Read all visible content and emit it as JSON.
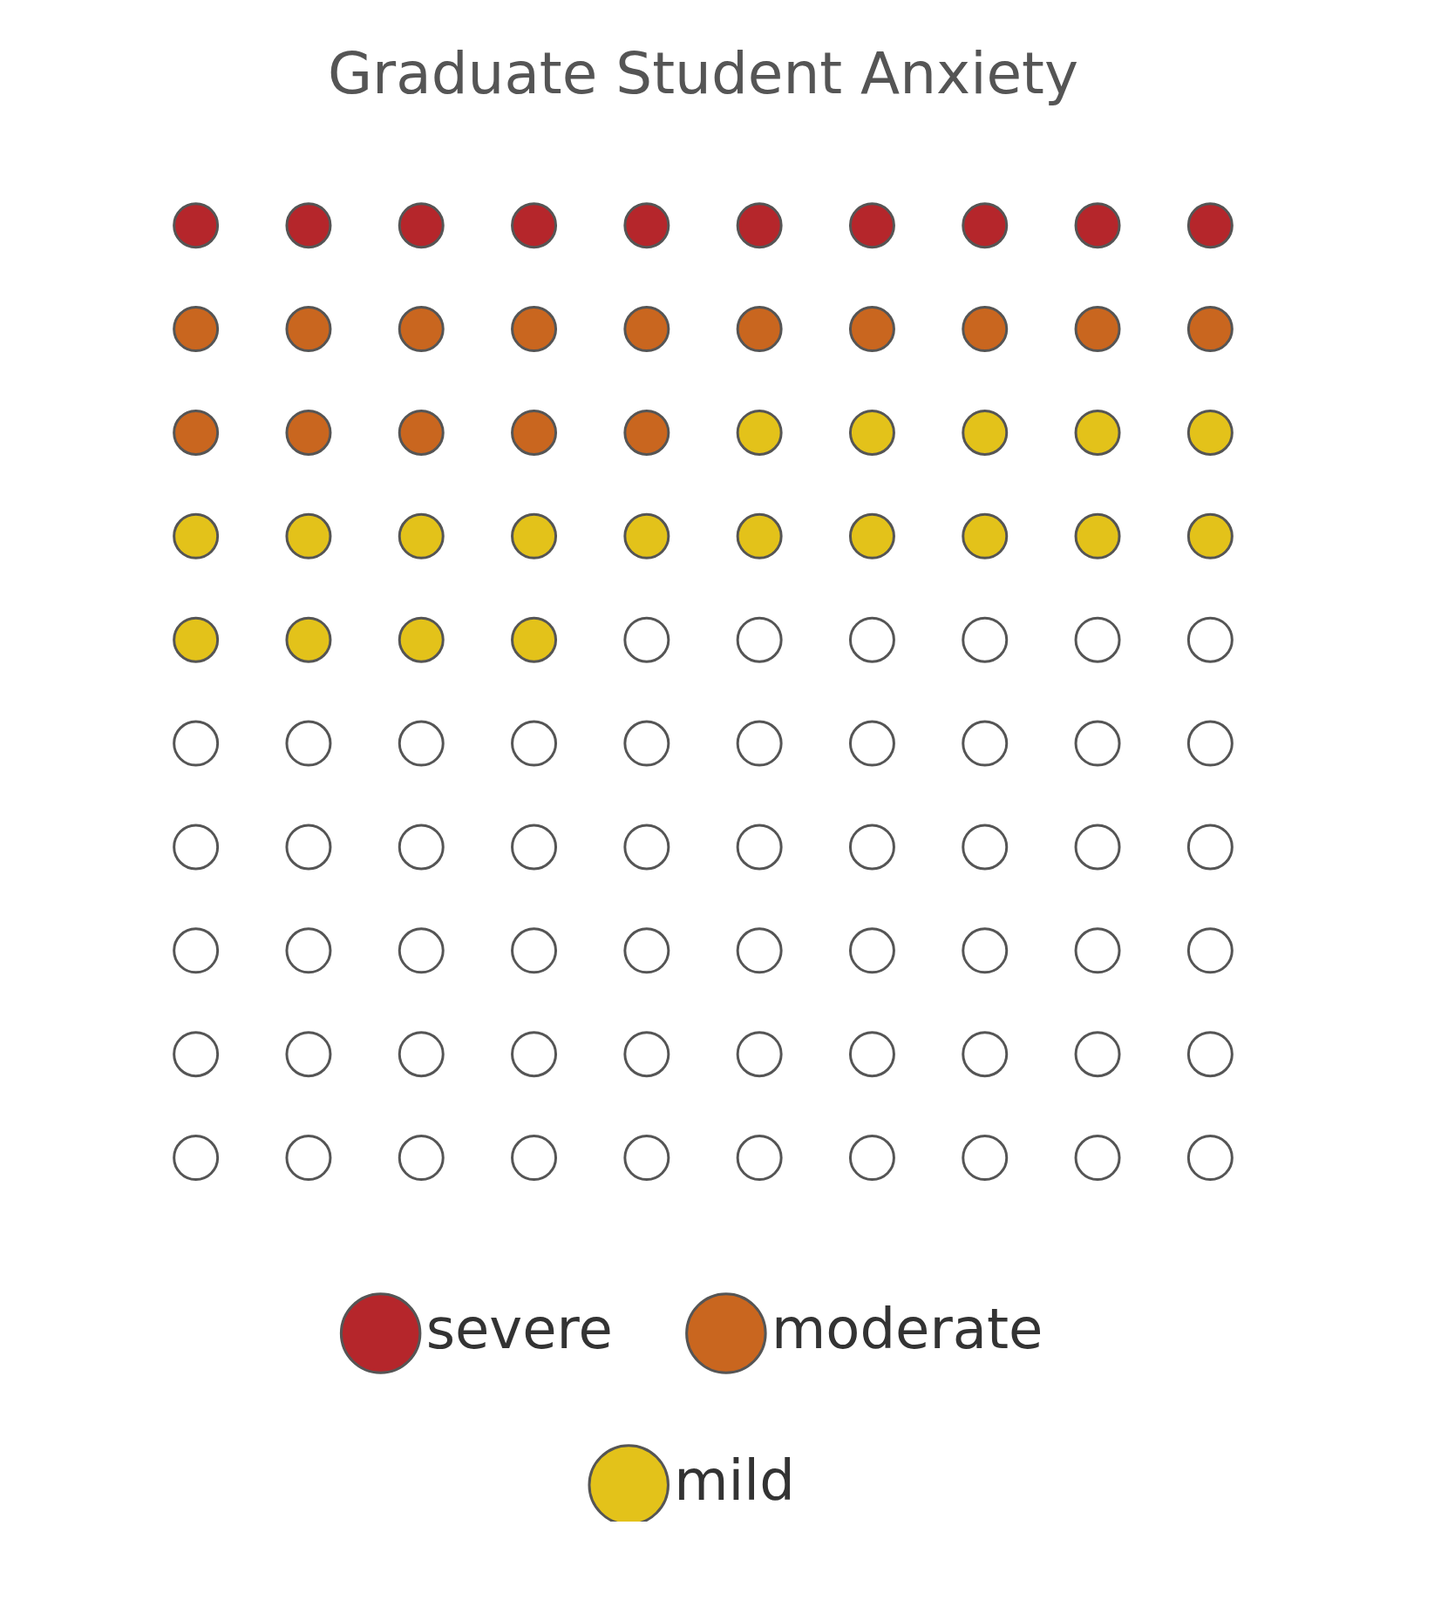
{
  "chart_data": {
    "type": "waffle",
    "title": "Graduate Student Anxiety",
    "categories": [
      "severe",
      "moderate",
      "mild",
      null
    ],
    "values": [
      10,
      15,
      19,
      56
    ],
    "colors": [
      "#b5262b",
      "#c9661f",
      "#e3c21a",
      "#ffffff"
    ],
    "legend": "bottom",
    "tick_labels": false,
    "grid": false
  }
}
